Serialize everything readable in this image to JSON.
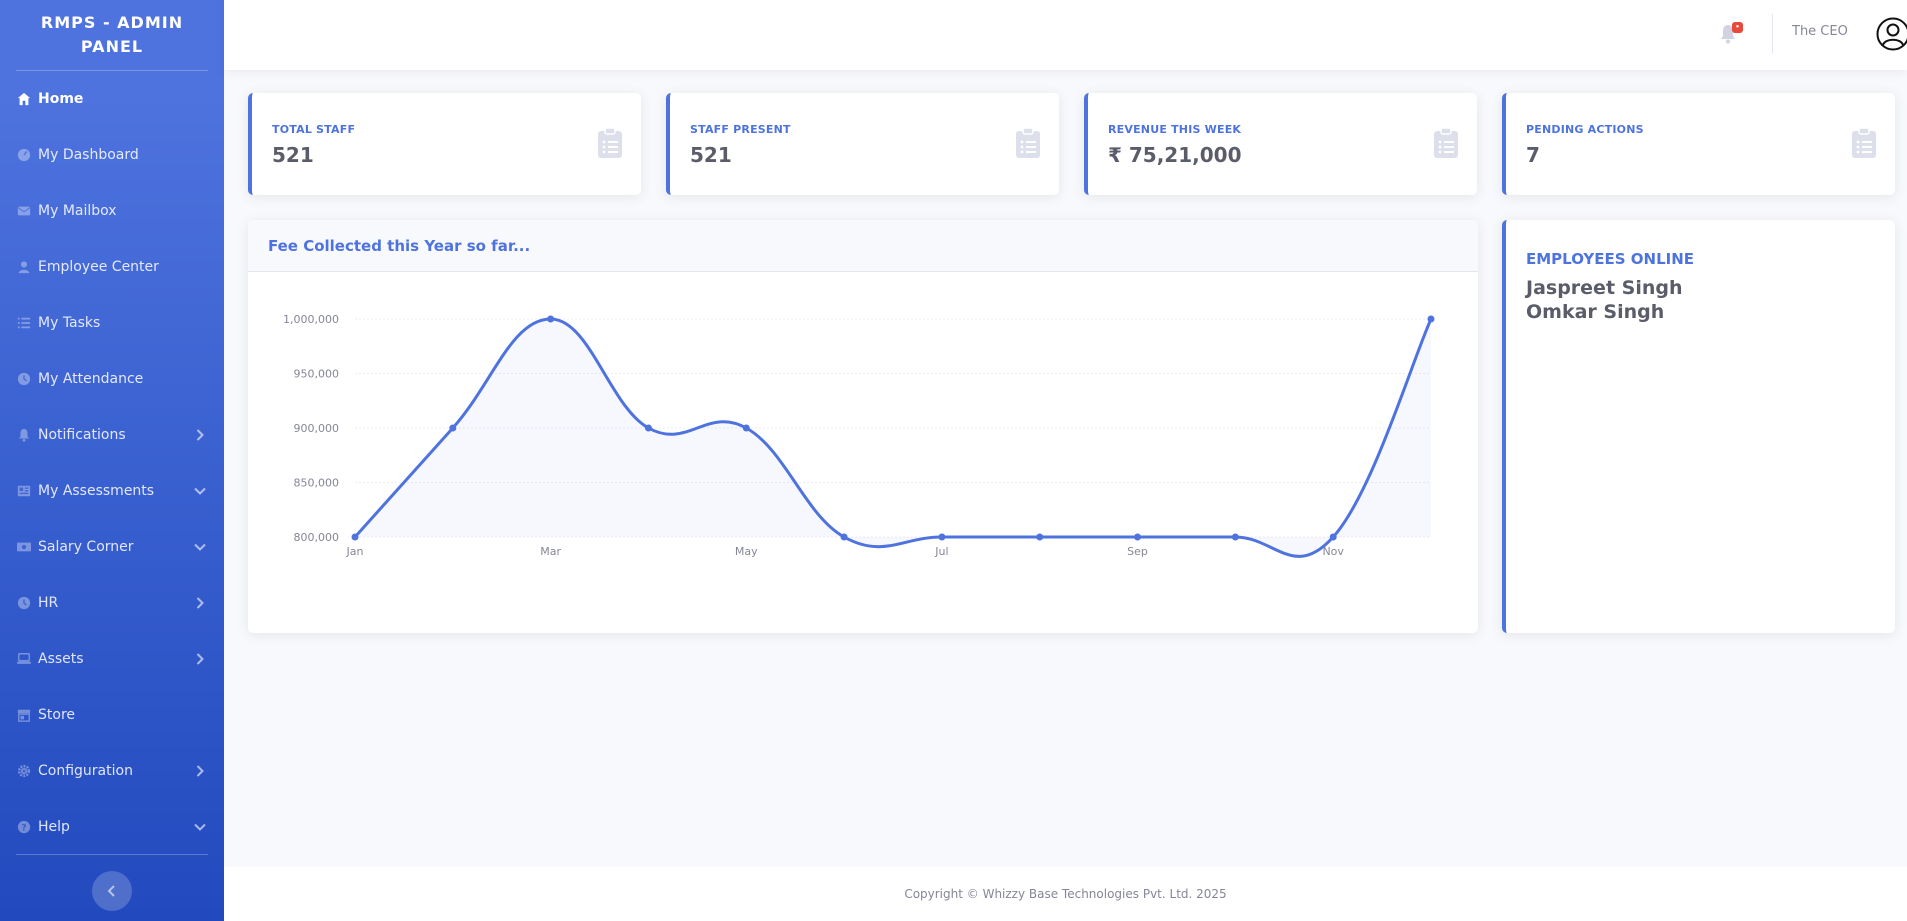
{
  "sidebar": {
    "brand": "RMPS - ADMIN PANEL",
    "items": [
      {
        "label": "Home",
        "icon": "home-icon",
        "active": true,
        "chevron": ""
      },
      {
        "label": "My Dashboard",
        "icon": "tachometer-icon",
        "chevron": ""
      },
      {
        "label": "My Mailbox",
        "icon": "envelope-icon",
        "chevron": ""
      },
      {
        "label": "Employee Center",
        "icon": "user-icon",
        "chevron": ""
      },
      {
        "label": "My Tasks",
        "icon": "list-icon",
        "chevron": ""
      },
      {
        "label": "My Attendance",
        "icon": "clock-icon",
        "chevron": ""
      },
      {
        "label": "Notifications",
        "icon": "bell-icon",
        "chevron": "right"
      },
      {
        "label": "My Assessments",
        "icon": "newspaper-icon",
        "chevron": "down"
      },
      {
        "label": "Salary Corner",
        "icon": "money-icon",
        "chevron": "down"
      },
      {
        "label": "HR",
        "icon": "history-icon",
        "chevron": "right"
      },
      {
        "label": "Assets",
        "icon": "laptop-icon",
        "chevron": "right"
      },
      {
        "label": "Store",
        "icon": "store-icon",
        "chevron": ""
      },
      {
        "label": "Configuration",
        "icon": "gear-icon",
        "chevron": "right"
      },
      {
        "label": "Help",
        "icon": "question-icon",
        "chevron": "down"
      }
    ]
  },
  "topbar": {
    "notification_count": "•",
    "user_name": "The CEO"
  },
  "cards": [
    {
      "label": "TOTAL STAFF",
      "value": "521"
    },
    {
      "label": "STAFF PRESENT",
      "value": "521"
    },
    {
      "label": "REVENUE THIS WEEK",
      "value": "₹ 75,21,000"
    },
    {
      "label": "PENDING ACTIONS",
      "value": "7"
    }
  ],
  "online": {
    "title": "EMPLOYEES ONLINE",
    "names": [
      "Jaspreet Singh",
      "Omkar Singh"
    ]
  },
  "footer": {
    "copyright": "Copyright © Whizzy Base Technologies Pvt. Ltd. 2025"
  },
  "colors": {
    "primary": "#4e73df",
    "danger": "#e74a3b"
  },
  "chart_data": {
    "type": "area",
    "title": "Fee Collected this Year so far...",
    "x": [
      "Jan",
      "Feb",
      "Mar",
      "Apr",
      "May",
      "Jun",
      "Jul",
      "Aug",
      "Sep",
      "Oct",
      "Nov",
      "Dec"
    ],
    "x_tick_labels": [
      "Jan",
      "Mar",
      "May",
      "Jul",
      "Sep",
      "Nov"
    ],
    "values": [
      800000,
      900000,
      1000000,
      900000,
      900000,
      800000,
      800000,
      800000,
      800000,
      800000,
      800000,
      1000000
    ],
    "y_ticks": [
      "1,000,000",
      "950,000",
      "900,000",
      "850,000",
      "800,000"
    ],
    "ylim": [
      800000,
      1000000
    ],
    "grid": true,
    "legend": "none"
  }
}
